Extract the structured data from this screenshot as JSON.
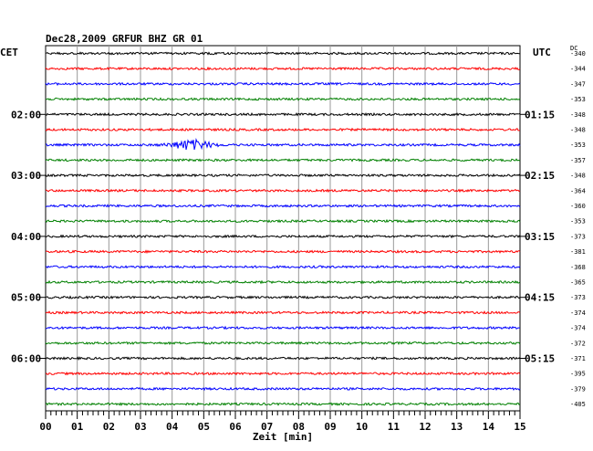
{
  "chart_data": {
    "type": "line",
    "title": "Dec28,2009   GRFUR BHZ GR 01",
    "left_header": "CET",
    "right_header": "UTC",
    "dc_header": "DC",
    "xlabel": "Zeit [min]",
    "xlim": [
      0,
      15
    ],
    "x_ticks": [
      "00",
      "01",
      "02",
      "03",
      "04",
      "05",
      "06",
      "07",
      "08",
      "09",
      "10",
      "11",
      "12",
      "13",
      "14",
      "15"
    ],
    "trace_colors": [
      "#000000",
      "#ff0000",
      "#0000ff",
      "#008000"
    ],
    "left_time_labels": [
      {
        "row": 4,
        "text": "02:00"
      },
      {
        "row": 8,
        "text": "03:00"
      },
      {
        "row": 12,
        "text": "04:00"
      },
      {
        "row": 16,
        "text": "05:00"
      },
      {
        "row": 20,
        "text": "06:00"
      }
    ],
    "right_time_labels": [
      {
        "row": 4,
        "text": "01:15"
      },
      {
        "row": 8,
        "text": "02:15"
      },
      {
        "row": 12,
        "text": "03:15"
      },
      {
        "row": 16,
        "text": "04:15"
      },
      {
        "row": 20,
        "text": "05:15"
      }
    ],
    "dc_values": [
      "-340",
      "-344",
      "-347",
      "-353",
      "-348",
      "-348",
      "-353",
      "-357",
      "-348",
      "-364",
      "-360",
      "-353",
      "-373",
      "-381",
      "-368",
      "-365",
      "-373",
      "-374",
      "-374",
      "-372",
      "-371",
      "-395",
      "-379",
      "-405"
    ],
    "event": {
      "row": 6,
      "center_min": 4.6,
      "width_min": 1.8,
      "peak_amplitude": 5
    }
  }
}
